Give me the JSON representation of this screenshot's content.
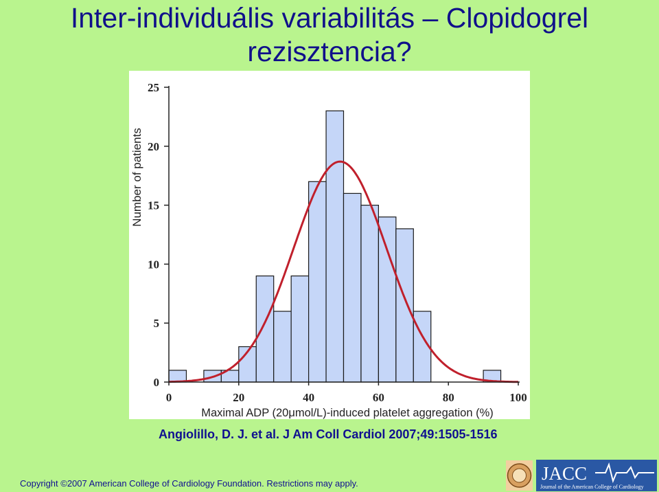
{
  "slide": {
    "title_line1": "Inter-individuális variabilitás – Clopidogrel",
    "title_line2": "rezisztencia?",
    "citation": "Angiolillo, D. J. et al. J Am Coll Cardiol 2007;49:1505-1516",
    "copyright": "Copyright ©2007 American College of Cardiology Foundation. Restrictions may apply."
  },
  "logo": {
    "name": "JACC",
    "subtitle": "Journal of the American College of Cardiology"
  },
  "chart_data": {
    "type": "bar",
    "bin_width": 5,
    "bin_starts": [
      0,
      5,
      10,
      15,
      20,
      25,
      30,
      35,
      40,
      45,
      50,
      55,
      60,
      65,
      70,
      75,
      80,
      85,
      90,
      95
    ],
    "values": [
      1,
      0,
      1,
      1,
      3,
      9,
      6,
      9,
      17,
      23,
      16,
      15,
      14,
      13,
      6,
      0,
      0,
      0,
      1,
      0
    ],
    "xlabel": "Maximal ADP (20μmol/L)-induced platelet aggregation (%)",
    "ylabel": "Number of patients",
    "xlim": [
      0,
      100
    ],
    "ylim": [
      0,
      25
    ],
    "x_ticks": [
      0,
      20,
      40,
      60,
      80,
      100
    ],
    "y_ticks": [
      0,
      5,
      10,
      15,
      20,
      25
    ],
    "overlay": {
      "type": "normal-fit",
      "mean": 49,
      "peak": 18.7,
      "sd": 13.3,
      "color": "#c0202c"
    },
    "bar_color": "#c5d6f8",
    "grid": false
  }
}
